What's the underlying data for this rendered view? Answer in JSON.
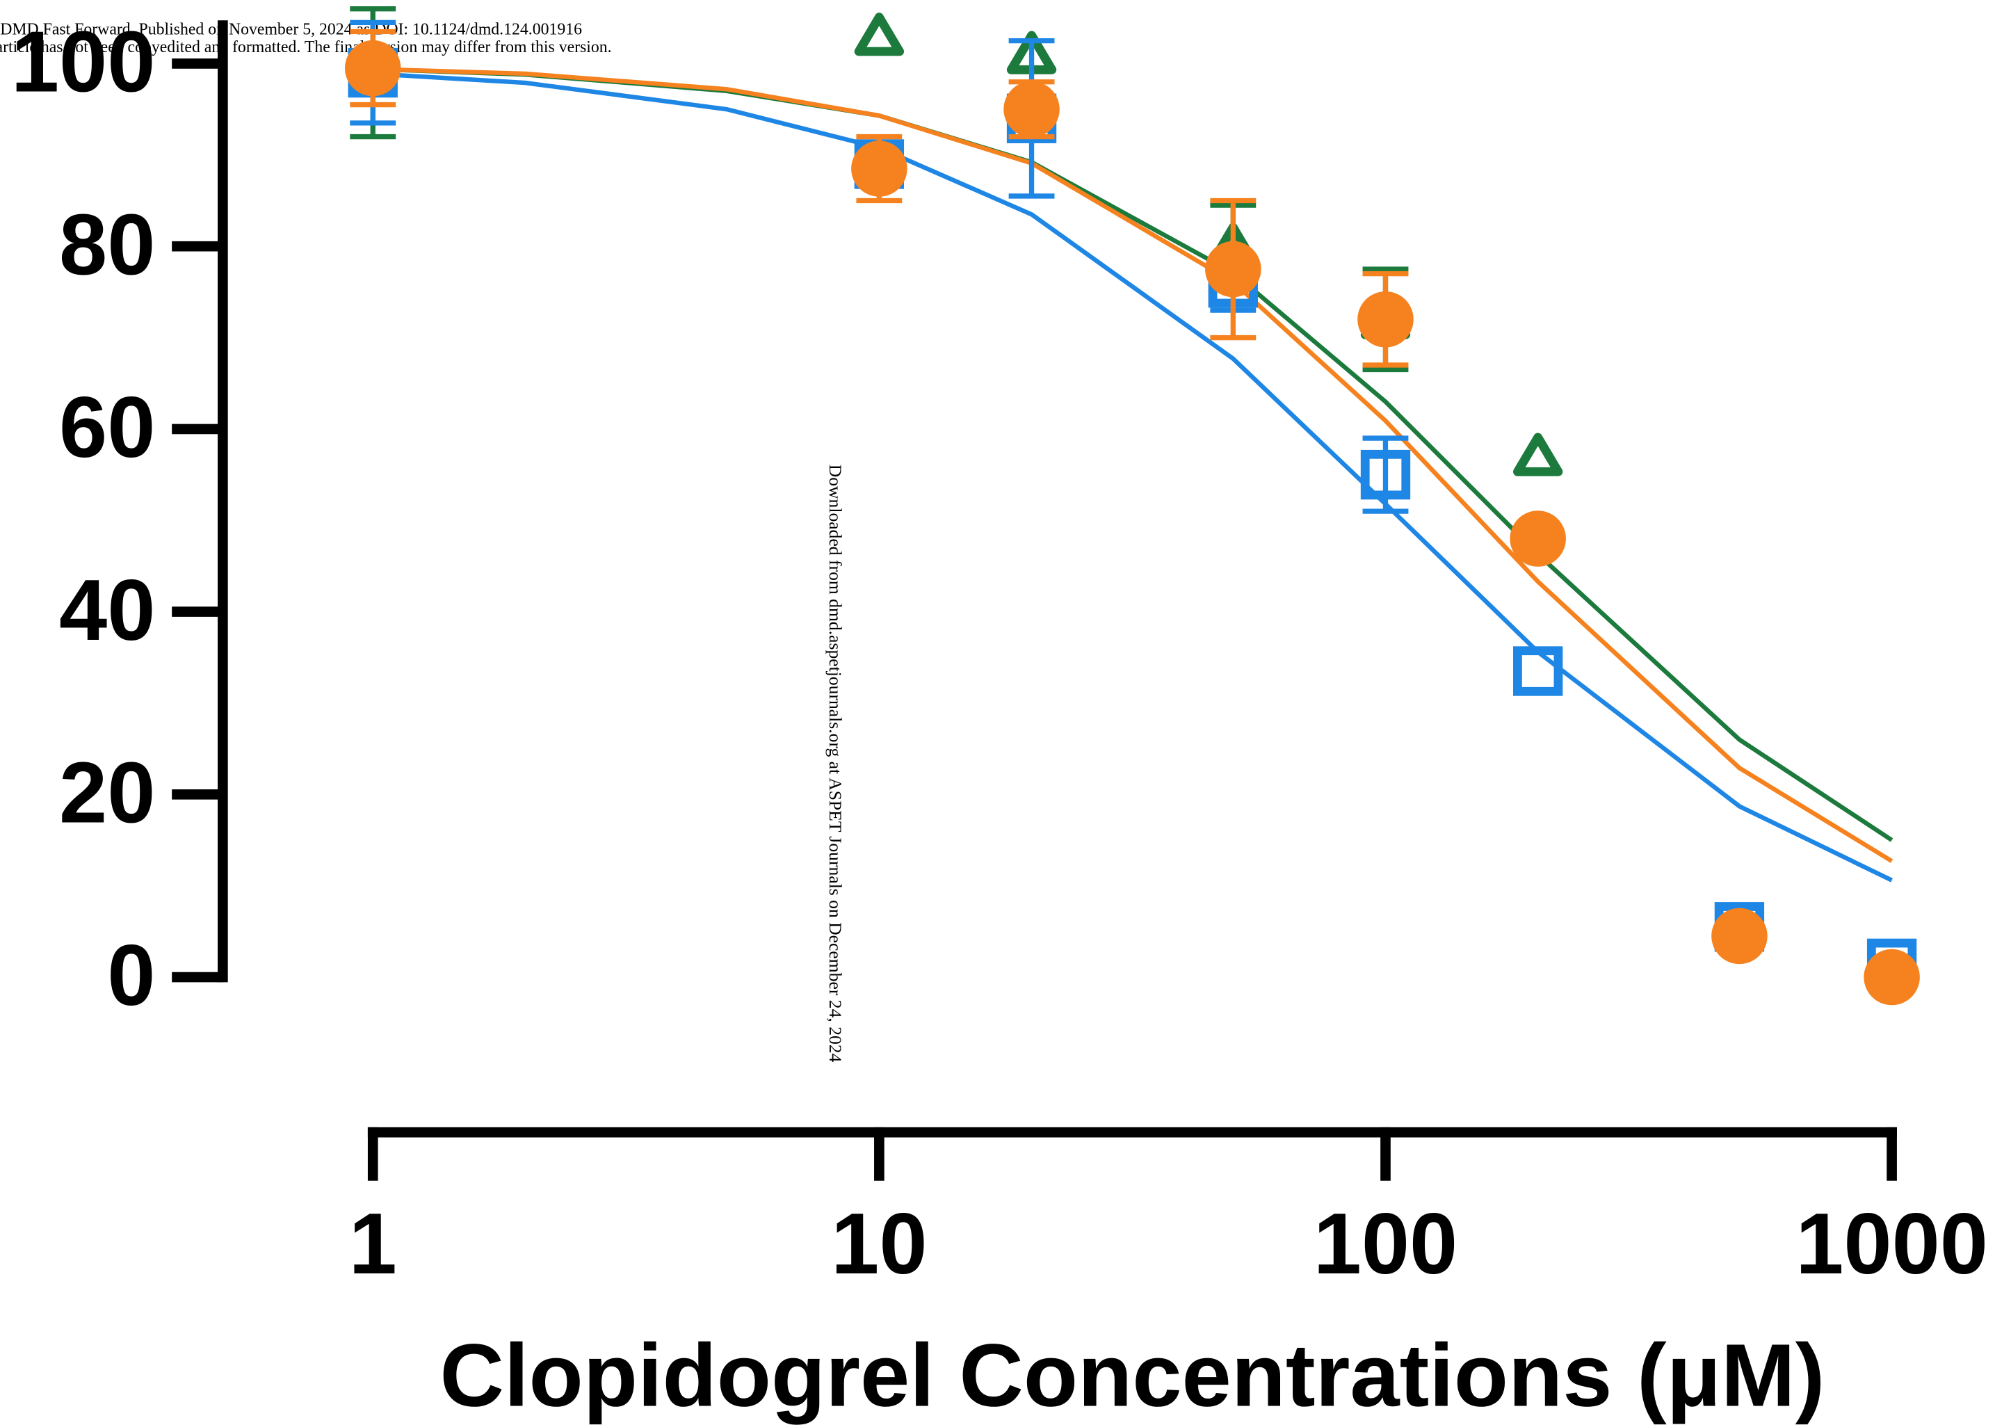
{
  "header": {
    "line1": "DMD Fast Forward. Published on November 5, 2024 as DOI: 10.1124/dmd.124.001916",
    "line2": "This article has not been copyedited and formatted. The final version may differ from this version."
  },
  "watermark": "Downloaded from dmd.aspetjournals.org at ASPET Journals on December 24, 2024",
  "chart_data": {
    "type": "scatter",
    "x_label": "Clopidogrel Concentrations (μM)",
    "x": [
      1,
      10,
      20,
      50,
      100,
      200,
      500,
      1000
    ],
    "xlim": [
      1,
      1000
    ],
    "xticks": [
      1,
      10,
      100,
      1000
    ],
    "xscale": "log",
    "ylim": [
      0,
      100
    ],
    "yticks": [
      0,
      20,
      40,
      60,
      80,
      100
    ],
    "series": [
      {
        "marker": "triangle",
        "color": "#1b7a3c",
        "values": [
          99,
          103,
          101,
          80,
          72,
          57,
          5,
          0.5
        ],
        "errors": [
          7,
          null,
          null,
          4.5,
          5.5,
          null,
          null,
          null
        ]
      },
      {
        "marker": "square",
        "color": "#1e86e4",
        "values": [
          99,
          89,
          94,
          76,
          55,
          33.5,
          5.5,
          1.5
        ],
        "errors": [
          5.5,
          null,
          8.5,
          3,
          4,
          null,
          null,
          null
        ]
      },
      {
        "marker": "circle",
        "color": "#f5821f",
        "values": [
          99.5,
          88.5,
          95,
          77.5,
          72,
          48,
          4.5,
          0
        ],
        "errors": [
          4,
          3.5,
          3,
          7.5,
          5,
          null,
          null,
          null
        ]
      }
    ],
    "fits": [
      {
        "color": "#1b7a3c",
        "x": [
          1,
          2,
          5,
          10,
          20,
          50,
          100,
          200,
          500,
          1000
        ],
        "values": [
          99.4,
          98.8,
          97.0,
          94.3,
          89.2,
          77.1,
          63.0,
          46.3,
          26.0,
          15.0
        ]
      },
      {
        "color": "#f5821f",
        "x": [
          1,
          2,
          5,
          10,
          20,
          50,
          100,
          200,
          500,
          1000
        ],
        "values": [
          99.4,
          98.9,
          97.2,
          94.3,
          89.1,
          76.1,
          60.9,
          43.3,
          22.9,
          12.7
        ]
      },
      {
        "color": "#1e86e4",
        "x": [
          1,
          2,
          5,
          10,
          20,
          50,
          100,
          200,
          500,
          1000
        ],
        "values": [
          98.9,
          97.9,
          95.0,
          90.8,
          83.5,
          67.7,
          51.8,
          35.6,
          18.7,
          10.6
        ]
      }
    ]
  }
}
